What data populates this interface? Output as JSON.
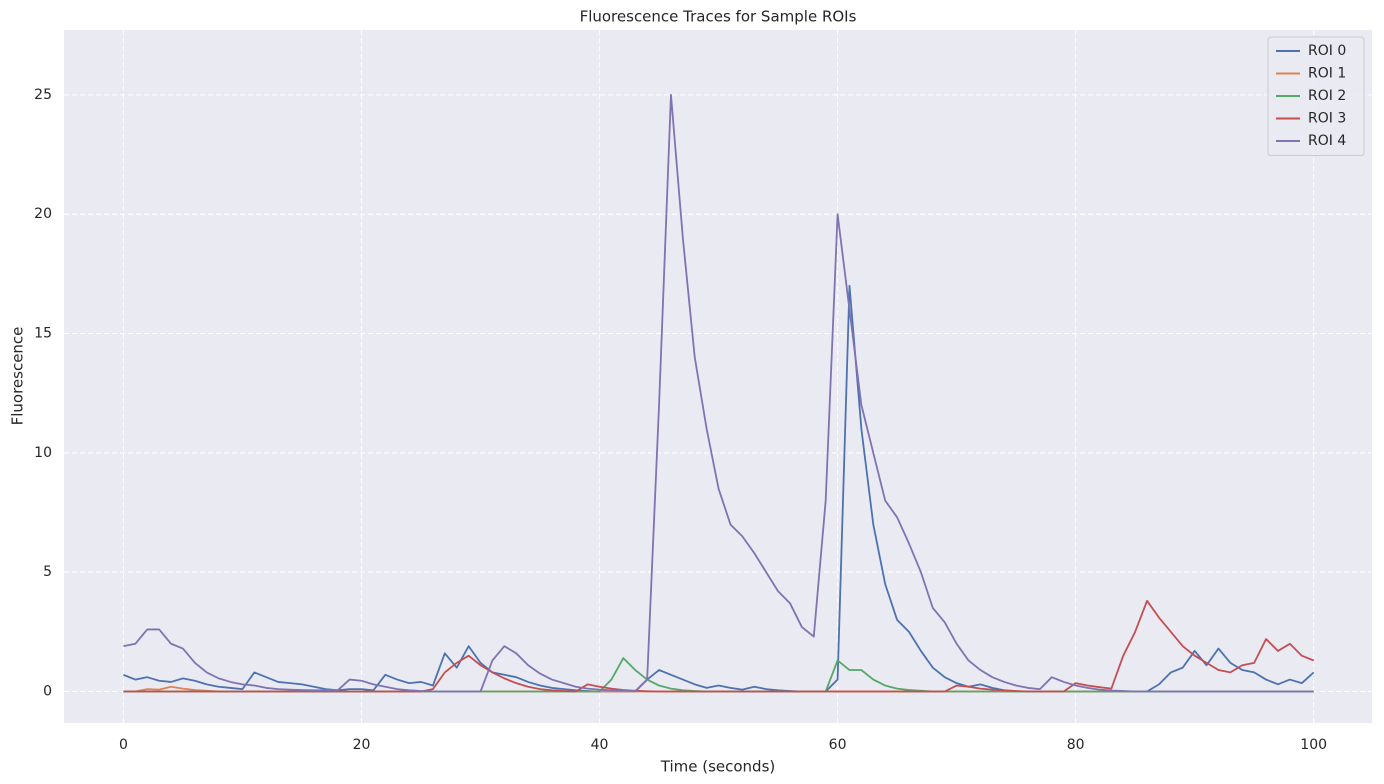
{
  "chart_data": {
    "type": "line",
    "title": "Fluorescence Traces for Sample ROIs",
    "xlabel": "Time (seconds)",
    "ylabel": "Fluorescence",
    "x": [
      0,
      1,
      2,
      3,
      4,
      5,
      6,
      7,
      8,
      9,
      10,
      11,
      12,
      13,
      14,
      15,
      16,
      17,
      18,
      19,
      20,
      21,
      22,
      23,
      24,
      25,
      26,
      27,
      28,
      29,
      30,
      31,
      32,
      33,
      34,
      35,
      36,
      37,
      38,
      39,
      40,
      41,
      42,
      43,
      44,
      45,
      46,
      47,
      48,
      49,
      50,
      51,
      52,
      53,
      54,
      55,
      56,
      57,
      58,
      59,
      60,
      61,
      62,
      63,
      64,
      65,
      66,
      67,
      68,
      69,
      70,
      71,
      72,
      73,
      74,
      75,
      76,
      77,
      78,
      79,
      80,
      81,
      82,
      83,
      84,
      85,
      86,
      87,
      88,
      89,
      90,
      91,
      92,
      93,
      94,
      95,
      96,
      97,
      98,
      99,
      100
    ],
    "series": [
      {
        "name": "ROI 0",
        "color": "#4c72b0",
        "values": [
          0.7,
          0.5,
          0.6,
          0.45,
          0.4,
          0.55,
          0.45,
          0.3,
          0.2,
          0.15,
          0.1,
          0.8,
          0.6,
          0.4,
          0.35,
          0.3,
          0.2,
          0.1,
          0.05,
          0.1,
          0.1,
          0.05,
          0.7,
          0.5,
          0.35,
          0.4,
          0.25,
          1.6,
          1.0,
          1.9,
          1.2,
          0.8,
          0.7,
          0.6,
          0.4,
          0.25,
          0.15,
          0.1,
          0.05,
          0.02,
          0,
          0,
          0,
          0,
          0.5,
          0.9,
          0.7,
          0.5,
          0.3,
          0.15,
          0.25,
          0.15,
          0.08,
          0.2,
          0.1,
          0.05,
          0.02,
          0,
          0,
          0,
          0.5,
          17,
          11,
          7,
          4.5,
          3.0,
          2.5,
          1.7,
          1.0,
          0.6,
          0.35,
          0.2,
          0.3,
          0.15,
          0.05,
          0,
          0,
          0,
          0,
          0,
          0,
          0,
          0,
          0,
          0,
          0,
          0,
          0.3,
          0.8,
          1.0,
          1.7,
          1.1,
          1.8,
          1.2,
          0.9,
          0.8,
          0.5,
          0.3,
          0.5,
          0.35,
          0.8
        ]
      },
      {
        "name": "ROI 1",
        "color": "#dd8452",
        "values": [
          0,
          0,
          0.1,
          0.08,
          0.2,
          0.12,
          0.06,
          0.03,
          0,
          0,
          0,
          0,
          0,
          0,
          0,
          0,
          0,
          0,
          0,
          0,
          0,
          0,
          0,
          0,
          0,
          0,
          0,
          0,
          0,
          0,
          0,
          0,
          0,
          0,
          0,
          0,
          0,
          0,
          0,
          0,
          0,
          0,
          0,
          0,
          0,
          0,
          0,
          0,
          0,
          0,
          0,
          0,
          0,
          0,
          0,
          0,
          0,
          0,
          0,
          0,
          0,
          0,
          0,
          0,
          0,
          0,
          0,
          0,
          0,
          0,
          0,
          0,
          0,
          0,
          0,
          0,
          0,
          0,
          0,
          0,
          0,
          0,
          0,
          0,
          0,
          0,
          0,
          0,
          0,
          0,
          0,
          0,
          0,
          0,
          0,
          0,
          0,
          0,
          0,
          0,
          0
        ]
      },
      {
        "name": "ROI 2",
        "color": "#55a868",
        "values": [
          0,
          0,
          0,
          0,
          0,
          0,
          0,
          0,
          0,
          0,
          0,
          0,
          0,
          0,
          0,
          0,
          0,
          0,
          0,
          0,
          0,
          0,
          0,
          0,
          0,
          0,
          0,
          0,
          0,
          0,
          0,
          0,
          0,
          0,
          0,
          0,
          0,
          0,
          0,
          0,
          0,
          0.5,
          1.4,
          0.9,
          0.5,
          0.25,
          0.12,
          0.05,
          0.02,
          0,
          0,
          0,
          0,
          0,
          0,
          0,
          0,
          0,
          0,
          0,
          1.3,
          0.9,
          0.9,
          0.5,
          0.25,
          0.12,
          0.06,
          0.03,
          0,
          0,
          0,
          0,
          0,
          0,
          0,
          0,
          0,
          0,
          0,
          0,
          0,
          0,
          0,
          0,
          0,
          0,
          0,
          0,
          0,
          0,
          0,
          0,
          0,
          0,
          0,
          0,
          0,
          0,
          0,
          0,
          0
        ]
      },
      {
        "name": "ROI 3",
        "color": "#c44e52",
        "values": [
          0,
          0,
          0,
          0,
          0,
          0,
          0,
          0,
          0,
          0,
          0,
          0,
          0,
          0,
          0,
          0,
          0,
          0,
          0,
          0,
          0,
          0,
          0,
          0,
          0,
          0,
          0.1,
          0.8,
          1.2,
          1.5,
          1.1,
          0.8,
          0.55,
          0.35,
          0.2,
          0.1,
          0.05,
          0.02,
          0,
          0.3,
          0.2,
          0.12,
          0.06,
          0.03,
          0.01,
          0,
          0,
          0,
          0,
          0,
          0,
          0,
          0,
          0,
          0,
          0,
          0,
          0,
          0,
          0,
          0,
          0,
          0,
          0,
          0,
          0,
          0,
          0,
          0,
          0,
          0.25,
          0.2,
          0.12,
          0.08,
          0.05,
          0.02,
          0,
          0,
          0,
          0,
          0.35,
          0.25,
          0.18,
          0.12,
          1.5,
          2.5,
          3.8,
          3.1,
          2.5,
          1.9,
          1.5,
          1.2,
          0.9,
          0.8,
          1.1,
          1.2,
          2.2,
          1.7,
          2.0,
          1.5,
          1.3
        ]
      },
      {
        "name": "ROI 4",
        "color": "#8172b3",
        "values": [
          1.9,
          2.0,
          2.6,
          2.6,
          2.0,
          1.8,
          1.2,
          0.8,
          0.55,
          0.4,
          0.3,
          0.25,
          0.15,
          0.1,
          0.08,
          0.06,
          0.05,
          0.05,
          0.05,
          0.5,
          0.45,
          0.3,
          0.2,
          0.1,
          0.05,
          0.02,
          0,
          0,
          0,
          0,
          0,
          1.3,
          1.9,
          1.6,
          1.1,
          0.75,
          0.5,
          0.35,
          0.2,
          0.12,
          0.08,
          0.05,
          0.03,
          0.02,
          0.5,
          12,
          25,
          19,
          14,
          11,
          8.5,
          7,
          6.5,
          5.8,
          5,
          4.2,
          3.7,
          2.7,
          2.3,
          8,
          20,
          16,
          12,
          10,
          8,
          7.3,
          6.2,
          5.0,
          3.5,
          2.9,
          2.0,
          1.3,
          0.9,
          0.6,
          0.4,
          0.25,
          0.15,
          0.1,
          0.6,
          0.4,
          0.25,
          0.15,
          0.08,
          0.04,
          0.02,
          0,
          0,
          0,
          0,
          0,
          0,
          0,
          0,
          0,
          0,
          0,
          0,
          0,
          0,
          0,
          0
        ]
      }
    ],
    "xlim": [
      -4.995,
      104.9
    ],
    "ylim": [
      -1.32,
      27.72
    ],
    "xticks": [
      0,
      20,
      40,
      60,
      80,
      100
    ],
    "yticks": [
      0,
      5,
      10,
      15,
      20,
      25
    ],
    "grid": true,
    "legend": "upper right"
  }
}
